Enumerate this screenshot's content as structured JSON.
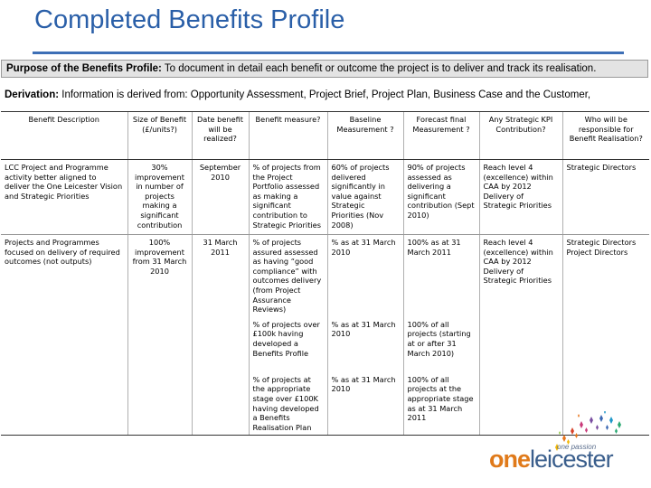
{
  "title": "Completed Benefits Profile",
  "purpose": {
    "label": "Purpose of the Benefits Profile:",
    "text": " To document in detail each benefit or outcome the project is to deliver and track its realisation."
  },
  "derivation": {
    "label": "Derivation:",
    "text": " Information is derived from: Opportunity Assessment, Project Brief, Project Plan, Business Case and the Customer,"
  },
  "table": {
    "headers": [
      "Benefit Description",
      "Size of Benefit (£/units?)",
      "Date benefit will be realized?",
      "Benefit measure?",
      "Baseline Measurement ?",
      "Forecast final Measurement ?",
      "Any Strategic KPI Contribution?",
      "Who will be responsible for Benefit Realisation?"
    ],
    "row1": {
      "description": "LCC Project and Programme activity better aligned to deliver the One Leicester Vision and Strategic Priorities",
      "size": "30% improvement in number of projects making a significant contribution",
      "date": "September 2010",
      "measure": "% of projects from the Project Portfolio assessed as making a significant contribution to Strategic Priorities",
      "baseline": "60% of projects delivered significantly in value against Strategic Priorities (Nov 2008)",
      "forecast": "90% of projects assessed as delivering a significant contribution (Sept 2010)",
      "kpi": "Reach level 4 (excellence) within CAA by 2012 Delivery of Strategic Priorities",
      "responsible": "Strategic Directors"
    },
    "row2": {
      "description": "Projects and Programmes focused on delivery of required outcomes (not outputs)",
      "size": "100% improvement from 31 March 2010",
      "date": "31 March 2011",
      "kpi": "Reach level 4 (excellence) within CAA by 2012 Delivery of Strategic Priorities",
      "responsible": "Strategic Directors Project Directors",
      "sub": [
        {
          "measure": "% of projects assured assessed as having “good compliance” with outcomes delivery (from Project Assurance Reviews)",
          "baseline": "% as at 31 March 2010",
          "forecast": "100% as at 31 March 2011"
        },
        {
          "measure": "% of projects over £100k having developed a Benefits Profile",
          "baseline": "% as at 31 March 2010",
          "forecast": "100% of all projects (starting at or after 31 March 2010)"
        },
        {
          "measure": "% of projects at the appropriate stage over £100K having developed a Benefits Realisation Plan",
          "baseline": "% as at 31 March 2010",
          "forecast": "100% of all projects at the appropriate stage as at 31 March 2011"
        }
      ]
    }
  },
  "logo": {
    "tagline": "one passion",
    "word_a": "one",
    "word_b": "leicester"
  },
  "colors": {
    "title": "#2a5fa8",
    "rule": "#3d6fb6",
    "purpose_bg": "#e3e3e3",
    "logo_orange": "#e07a1a",
    "logo_blue": "#3a5e8c"
  }
}
